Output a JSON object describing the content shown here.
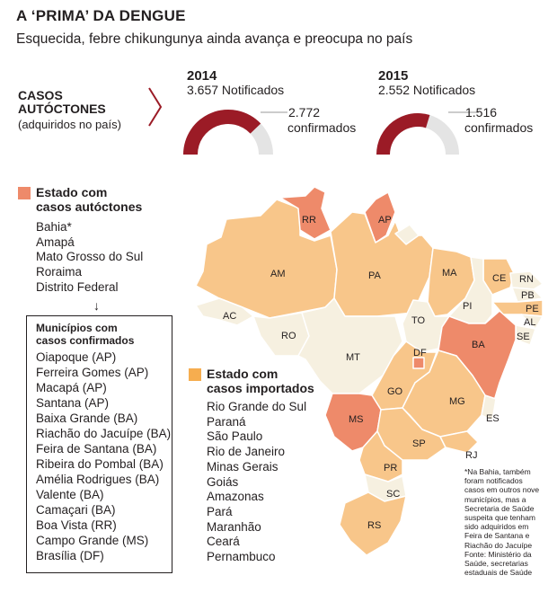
{
  "title": "A ‘PRIMA’ DA DENGUE",
  "subtitle": "Esquecida, febre chikungunya ainda avança e preocupa no país",
  "section": {
    "title_line1": "CASOS",
    "title_line2": "AUTÓCTONES",
    "subtitle": "(adquiridos no país)"
  },
  "chart_data": {
    "type": "pie",
    "charts": [
      {
        "year": "2014",
        "notified": 3657,
        "notified_label": "3.657 Notificados",
        "confirmed": 2772,
        "confirmed_value": "2.772",
        "confirmed_word": "confirmados"
      },
      {
        "year": "2015",
        "notified": 2552,
        "notified_label": "2.552 Notificados",
        "confirmed": 1516,
        "confirmed_value": "1.516",
        "confirmed_word": "confirmados"
      }
    ]
  },
  "colors": {
    "accent": "#9b1b26",
    "gray": "#e4e4e4",
    "autoctone": "#ee8a6a",
    "importado": "#f8c68a",
    "importado_legend": "#f6ad4f",
    "neutral": "#f6f0e0"
  },
  "legend_autoctones": {
    "label_line1": "Estado com",
    "label_line2": "casos autóctones",
    "items": [
      "Bahia*",
      "Amapá",
      "Mato Grosso do Sul",
      "Roraima",
      "Distrito Federal"
    ]
  },
  "arrow_glyph": "↓",
  "municipios": {
    "title_line1": "Municípios com",
    "title_line2": "casos confirmados",
    "items": [
      "Oiapoque (AP)",
      "Ferreira Gomes (AP)",
      "Macapá (AP)",
      "Santana (AP)",
      "Baixa Grande (BA)",
      "Riachão do Jacuípe (BA)",
      "Feira de Santana (BA)",
      "Ribeira do Pombal (BA)",
      "Amélia Rodrigues (BA)",
      "Valente (BA)",
      "Camaçari (BA)",
      "Boa Vista (RR)",
      "Campo Grande (MS)",
      "Brasília (DF)"
    ]
  },
  "legend_importados": {
    "label_line1": "Estado com",
    "label_line2": "casos importados",
    "items": [
      "Rio Grande do Sul",
      "Paraná",
      "São Paulo",
      "Rio de Janeiro",
      "Minas Gerais",
      "Goiás",
      "Amazonas",
      "Pará",
      "Maranhão",
      "Ceará",
      "Pernambuco"
    ]
  },
  "map_states": {
    "RR": "RR",
    "AP": "AP",
    "AM": "AM",
    "PA": "PA",
    "MA": "MA",
    "CE": "CE",
    "RN": "RN",
    "PB": "PB",
    "PE": "PE",
    "AL": "AL",
    "SE": "SE",
    "PI": "PI",
    "AC": "AC",
    "RO": "RO",
    "TO": "TO",
    "BA": "BA",
    "MT": "MT",
    "DF": "DF",
    "GO": "GO",
    "MG": "MG",
    "ES": "ES",
    "MS": "MS",
    "SP": "SP",
    "RJ": "RJ",
    "PR": "PR",
    "SC": "SC",
    "RS": "RS"
  },
  "note": {
    "line1": "*Na Bahia, também",
    "line2": "foram notificados",
    "line3": "casos em outros nove",
    "line4": "municípios, mas a",
    "line5": "Secretaria de Saúde",
    "line6": "suspeita que tenham",
    "line7": "sido adquiridos em",
    "line8": "Feira de Santana e",
    "line9": "Riachão do Jacuípe",
    "line10": "Fonte: Ministério da",
    "line11": "Saúde, secretarias",
    "line12": "estaduais de Saúde"
  }
}
